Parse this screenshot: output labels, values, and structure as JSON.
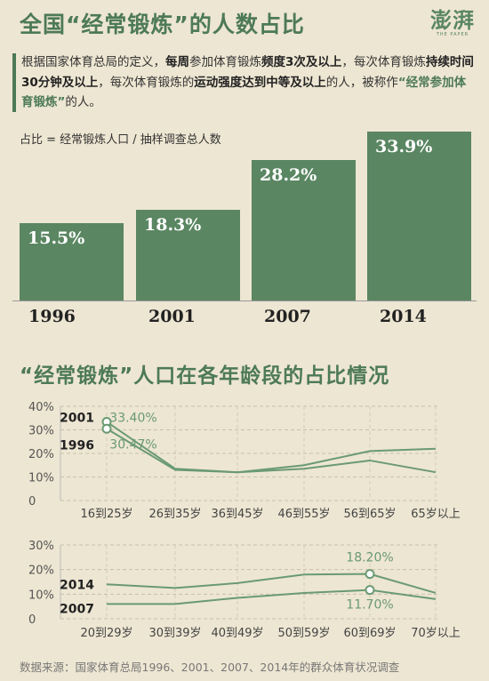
{
  "title": "全国“经常锻炼”的人数占比",
  "logo": {
    "cn": "澎湃",
    "en": "THE PAPER"
  },
  "description": {
    "p1": "根据国家体育总局的定义，",
    "b1": "每周",
    "p2": "参加体育锻炼",
    "b2": "频度3次及以上",
    "p3": "，每次体育锻炼",
    "b3": "持续时间30分钟及以上",
    "p4": "，每次体育锻炼的",
    "b4": "运动强度达到中等及以上",
    "p5": "的人，被称作",
    "hl": "“经常参加体育锻炼”",
    "p6": "的人。"
  },
  "formula": "占比 = 经常锻炼人口 / 抽样调查总人数",
  "chart_data": [
    {
      "type": "bar",
      "categories": [
        "1996",
        "2001",
        "2007",
        "2014"
      ],
      "values": [
        15.5,
        18.3,
        28.2,
        33.9
      ],
      "value_labels": [
        "15.5%",
        "18.3%",
        "28.2%",
        "33.9%"
      ],
      "unit": "%",
      "ylim": [
        0,
        35
      ]
    },
    {
      "type": "line",
      "title": "“经常锻炼”人口在各年龄段的占比情况",
      "categories": [
        "16到25岁",
        "26到35岁",
        "36到45岁",
        "46到55岁",
        "56到65岁",
        "65岁以上"
      ],
      "yticks": [
        "0",
        "10%",
        "20%",
        "30%",
        "40%"
      ],
      "ylim": [
        0,
        40
      ],
      "series": [
        {
          "name": "2001",
          "values": [
            33.4,
            13.5,
            12.0,
            15.0,
            21.0,
            22.0
          ]
        },
        {
          "name": "1996",
          "values": [
            30.47,
            13.0,
            12.0,
            13.5,
            17.0,
            12.0
          ]
        }
      ],
      "annotations": [
        "33.40%",
        "30.47%"
      ]
    },
    {
      "type": "line",
      "categories": [
        "20到29岁",
        "30到39岁",
        "40到49岁",
        "50到59岁",
        "60到69岁",
        "70岁以上"
      ],
      "yticks": [
        "0",
        "10%",
        "20%",
        "30%"
      ],
      "ylim": [
        0,
        30
      ],
      "series": [
        {
          "name": "2014",
          "values": [
            14.0,
            12.5,
            14.5,
            18.0,
            18.2,
            10.5
          ]
        },
        {
          "name": "2007",
          "values": [
            6.0,
            6.0,
            8.5,
            10.5,
            11.7,
            8.0
          ]
        }
      ],
      "annotations": [
        "18.20%",
        "11.70%"
      ]
    }
  ],
  "source": "数据来源：国家体育总局1996、2001、2007、2014年的群众体育状况调查",
  "colors": {
    "accent": "#4d7a57",
    "bar": "#5a8662",
    "line": "#6a9a72",
    "background": "#ede6d2"
  }
}
